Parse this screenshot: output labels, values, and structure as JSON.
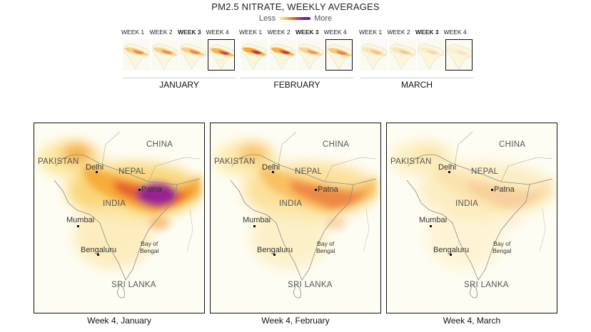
{
  "header": {
    "title": "PM2.5 NITRATE, WEEKLY AVERAGES",
    "legend_less": "Less",
    "legend_more": "More"
  },
  "months": [
    {
      "label": "JANUARY",
      "weeks": [
        {
          "label": "WEEK 1",
          "level": 0.55
        },
        {
          "label": "WEEK 2",
          "level": 0.5
        },
        {
          "label": "WEEK 3",
          "level": 0.55
        },
        {
          "label": "WEEK 4",
          "level": 0.85
        }
      ]
    },
    {
      "label": "FEBRUARY",
      "weeks": [
        {
          "label": "WEEK 1",
          "level": 1.0
        },
        {
          "label": "WEEK 2",
          "level": 0.9
        },
        {
          "label": "WEEK 3",
          "level": 0.45
        },
        {
          "label": "WEEK 4",
          "level": 0.6
        }
      ]
    },
    {
      "label": "MARCH",
      "weeks": [
        {
          "label": "WEEK 1",
          "level": 0.25
        },
        {
          "label": "WEEK 2",
          "level": 0.2
        },
        {
          "label": "WEEK 3",
          "level": 0.12
        },
        {
          "label": "WEEK 4",
          "level": 0.08
        }
      ]
    }
  ],
  "maps": [
    {
      "caption": "Week 4, January",
      "intensity": 1.0
    },
    {
      "caption": "Week 4, February",
      "intensity": 0.6
    },
    {
      "caption": "Week 4, March",
      "intensity": 0.15
    }
  ],
  "places": {
    "china": "CHINA",
    "pakistan": "PAKISTAN",
    "delhi": "Delhi",
    "nepal": "NEPAL",
    "patna": "Patna",
    "india": "INDIA",
    "mumbai": "Mumbai",
    "bay_line1": "Bay of",
    "bay_line2": "Bengal",
    "bengaluru": "Bengaluru",
    "sri_lanka": "SRI LANKA"
  },
  "colors": {
    "low": "#fff1b5",
    "mid": "#f7a935",
    "high": "#e4572e",
    "peak": "#8e1b9b"
  }
}
